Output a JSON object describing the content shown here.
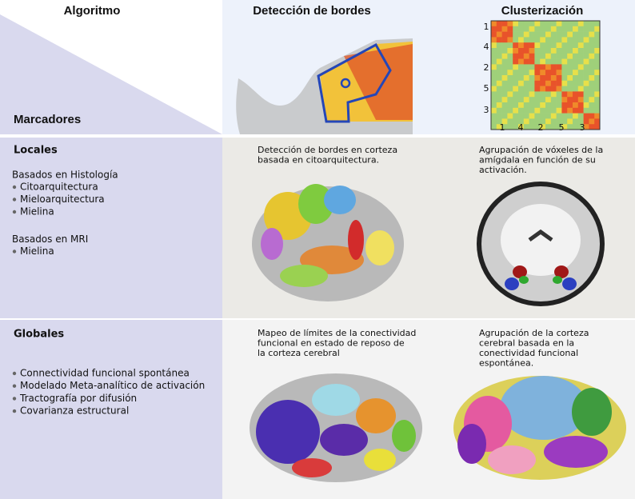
{
  "header": {
    "algorithm": "Algoritmo",
    "markers": "Marcadores",
    "columns": [
      "Detección de bordes",
      "Clusterización"
    ],
    "matrix_labels": {
      "y": [
        "1",
        "4",
        "2",
        "5",
        "3"
      ],
      "x": [
        "1",
        "4",
        "2",
        "5",
        "3"
      ]
    }
  },
  "sections": [
    {
      "title": "Locales",
      "groups": [
        {
          "title": "Basados en Histología",
          "items": [
            "Citoarquitectura",
            "Mieloarquitectura",
            "Mielina"
          ]
        },
        {
          "title": "Basados en MRI",
          "items": [
            "Mielina"
          ]
        }
      ],
      "captions": [
        [
          "Detección de bordes en corteza",
          "basada en citoarquitectura."
        ],
        [
          "Agrupación de vóxeles de la",
          "amígdala en función de su",
          "activación."
        ]
      ]
    },
    {
      "title": "Globales",
      "groups": [
        {
          "items": [
            "Connectividad funcional spontánea",
            "Modelado Meta-analítico de activación",
            "Tractografía por difusión",
            "Covarianza estructural"
          ]
        }
      ],
      "captions": [
        [
          "Mapeo de límites de la conectividad",
          "funcional en estado de reposo de",
          "la corteza cerebral"
        ],
        [
          "Agrupación de la corteza",
          "cerebral basada en la",
          "conectividad funcional",
          "espontánea."
        ]
      ]
    }
  ]
}
